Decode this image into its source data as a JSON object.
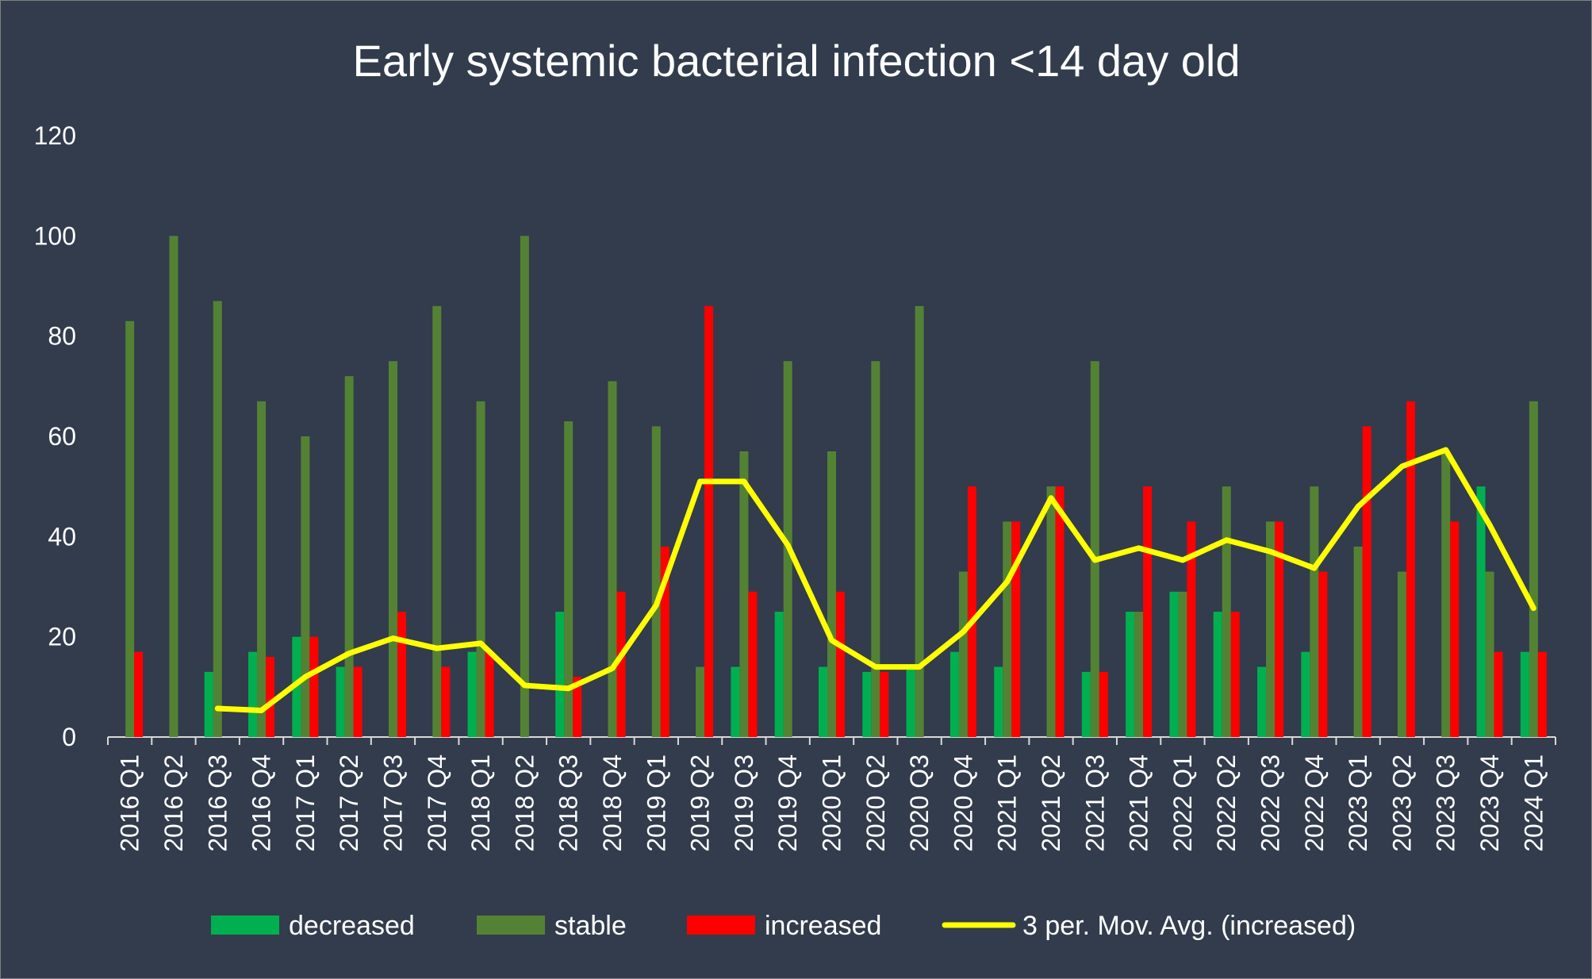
{
  "chart_data": {
    "type": "bar",
    "title": "Early systemic bacterial infection <14 day old",
    "xlabel": "",
    "ylabel": "",
    "ylim": [
      0,
      120
    ],
    "yticks": [
      0,
      20,
      40,
      60,
      80,
      100,
      120
    ],
    "grid": false,
    "legend_position": "bottom",
    "categories": [
      "2016 Q1",
      "2016 Q2",
      "2016 Q3",
      "2016 Q4",
      "2017 Q1",
      "2017 Q2",
      "2017 Q3",
      "2017 Q4",
      "2018 Q1",
      "2018 Q2",
      "2018 Q3",
      "2018 Q4",
      "2019 Q1",
      "2019 Q2",
      "2019 Q3",
      "2019 Q4",
      "2020 Q1",
      "2020 Q2",
      "2020 Q3",
      "2020 Q4",
      "2021 Q1",
      "2021 Q2",
      "2021 Q3",
      "2021 Q4",
      "2022 Q1",
      "2022 Q2",
      "2022 Q3",
      "2022 Q4",
      "2023 Q1",
      "2023 Q2",
      "2023 Q3",
      "2023 Q4",
      "2024 Q1"
    ],
    "series": [
      {
        "name": "decreased",
        "kind": "bar",
        "color": "#00b050",
        "values": [
          0,
          0,
          13,
          17,
          20,
          14,
          0,
          0,
          17,
          0,
          25,
          0,
          0,
          0,
          14,
          25,
          14,
          13,
          14,
          17,
          14,
          0,
          13,
          25,
          29,
          25,
          14,
          17,
          0,
          0,
          0,
          50,
          17
        ]
      },
      {
        "name": "stable",
        "kind": "bar",
        "color": "#548235",
        "values": [
          83,
          100,
          87,
          67,
          60,
          72,
          75,
          86,
          67,
          100,
          63,
          71,
          62,
          14,
          57,
          75,
          57,
          75,
          86,
          33,
          43,
          50,
          75,
          25,
          29,
          50,
          43,
          50,
          38,
          33,
          57,
          33,
          67
        ]
      },
      {
        "name": "increased",
        "kind": "bar",
        "color": "#ff0000",
        "values": [
          17,
          0,
          0,
          16,
          20,
          14,
          25,
          14,
          17,
          0,
          12,
          29,
          38,
          86,
          29,
          0,
          29,
          13,
          0,
          50,
          43,
          50,
          13,
          50,
          43,
          25,
          43,
          33,
          62,
          67,
          43,
          17,
          17
        ]
      },
      {
        "name": "3 per. Mov. Avg. (increased)",
        "kind": "line",
        "color": "#ffff00",
        "values": [
          null,
          null,
          5.7,
          5.3,
          12,
          16.7,
          19.7,
          17.7,
          18.7,
          10.3,
          9.7,
          13.7,
          26.3,
          51,
          51,
          38.3,
          19.3,
          14,
          14,
          21,
          31,
          47.7,
          35.3,
          37.7,
          35.3,
          39.3,
          37,
          33.7,
          46,
          54,
          57.3,
          42.3,
          25.7
        ]
      }
    ]
  }
}
